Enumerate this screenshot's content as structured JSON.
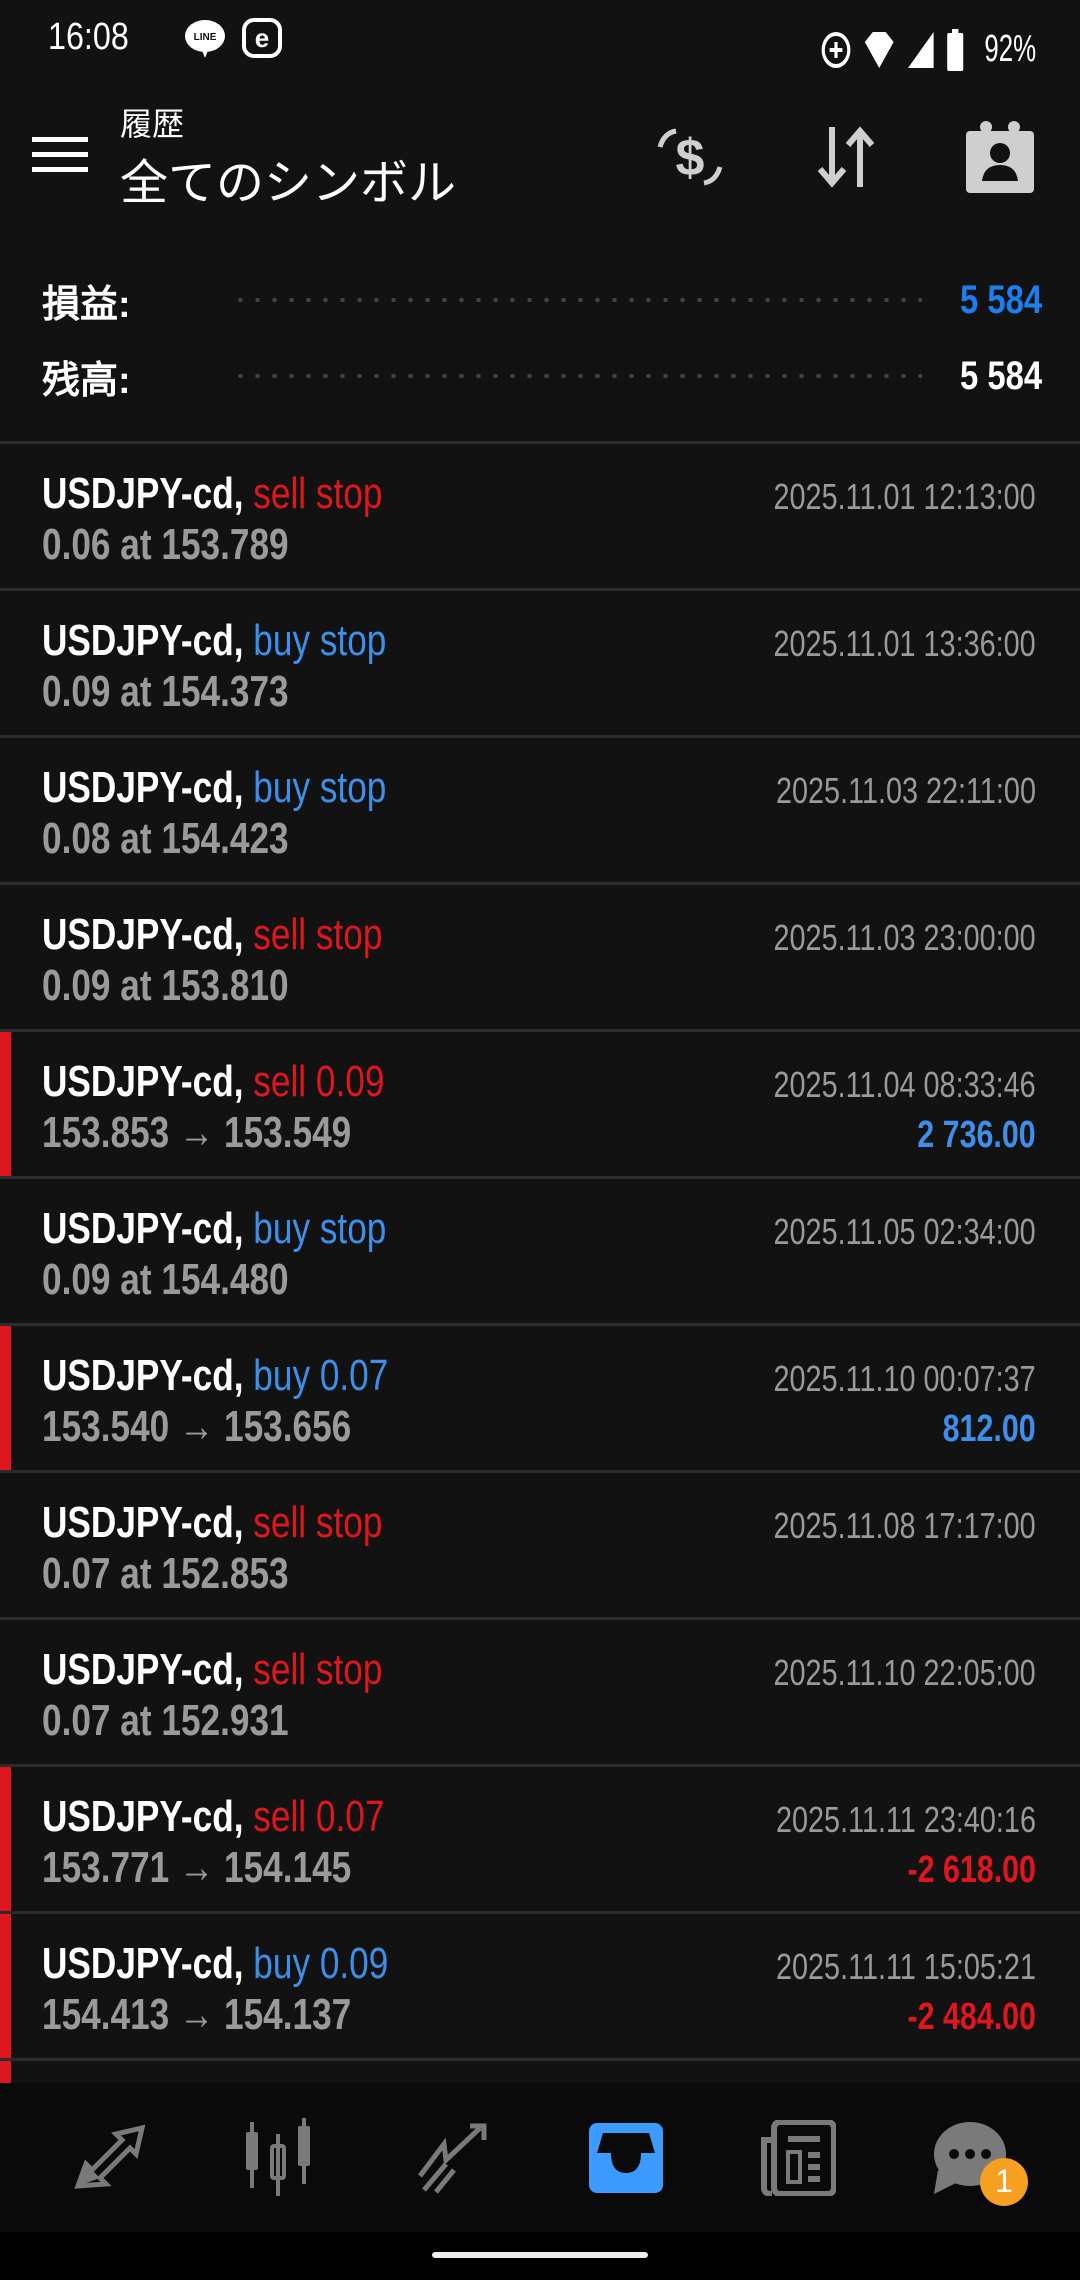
{
  "status_bar": {
    "time": "16:08",
    "battery": "92%",
    "icons": [
      "line-icon",
      "e-icon",
      "data-saver-icon",
      "wifi-icon",
      "signal-icon",
      "battery-icon"
    ]
  },
  "header": {
    "subtitle": "履歴",
    "title": "全てのシンボル",
    "actions": [
      "currency-exchange-icon",
      "sort-icon",
      "calendar-contact-icon"
    ]
  },
  "summary": {
    "profit_label": "損益:",
    "profit_value": "5 584",
    "profit_color": "#1a7ff0",
    "balance_label": "残高:",
    "balance_value": "5 584"
  },
  "colors": {
    "sell": "#e0161e",
    "buy": "#3d8fea",
    "accent": "#3d9bff",
    "badge": "#f5a020"
  },
  "orders": [
    {
      "symbol": "USDJPY-cd,",
      "action": "sell stop",
      "side": "sell",
      "detail": "0.06 at 153.789",
      "time": "2025.11.01 12:13:00"
    },
    {
      "symbol": "USDJPY-cd,",
      "action": "buy stop",
      "side": "buy",
      "detail": "0.09 at 154.373",
      "time": "2025.11.01 13:36:00"
    },
    {
      "symbol": "USDJPY-cd,",
      "action": "buy stop",
      "side": "buy",
      "detail": "0.08 at 154.423",
      "time": "2025.11.03 22:11:00"
    },
    {
      "symbol": "USDJPY-cd,",
      "action": "sell stop",
      "side": "sell",
      "detail": "0.09 at 153.810",
      "time": "2025.11.03 23:00:00"
    },
    {
      "symbol": "USDJPY-cd,",
      "action": "sell 0.09",
      "side": "sell",
      "detail": "153.853 → 153.549",
      "time": "2025.11.04 08:33:46",
      "profit": "2 736.00",
      "profit_side": "buy"
    },
    {
      "symbol": "USDJPY-cd,",
      "action": "buy stop",
      "side": "buy",
      "detail": "0.09 at 154.480",
      "time": "2025.11.05 02:34:00"
    },
    {
      "symbol": "USDJPY-cd,",
      "action": "buy 0.07",
      "side": "buy",
      "detail": "153.540 → 153.656",
      "time": "2025.11.10 00:07:37",
      "profit": "812.00",
      "profit_side": "buy"
    },
    {
      "symbol": "USDJPY-cd,",
      "action": "sell stop",
      "side": "sell",
      "detail": "0.07 at 152.853",
      "time": "2025.11.08 17:17:00"
    },
    {
      "symbol": "USDJPY-cd,",
      "action": "sell stop",
      "side": "sell",
      "detail": "0.07 at 152.931",
      "time": "2025.11.10 22:05:00"
    },
    {
      "symbol": "USDJPY-cd,",
      "action": "sell 0.07",
      "side": "sell",
      "detail": "153.771 → 154.145",
      "time": "2025.11.11 23:40:16",
      "profit": "-2 618.00",
      "profit_side": "sell"
    },
    {
      "symbol": "USDJPY-cd,",
      "action": "buy 0.09",
      "side": "buy",
      "detail": "154.413 → 154.137",
      "time": "2025.11.11 15:05:21",
      "profit": "-2 484.00",
      "profit_side": "sell"
    }
  ],
  "bottom_nav": {
    "items": [
      "quotes-icon",
      "chart-icon",
      "trade-icon",
      "history-icon",
      "news-icon",
      "chat-icon"
    ],
    "active": "history-icon",
    "chat_badge": "1"
  }
}
